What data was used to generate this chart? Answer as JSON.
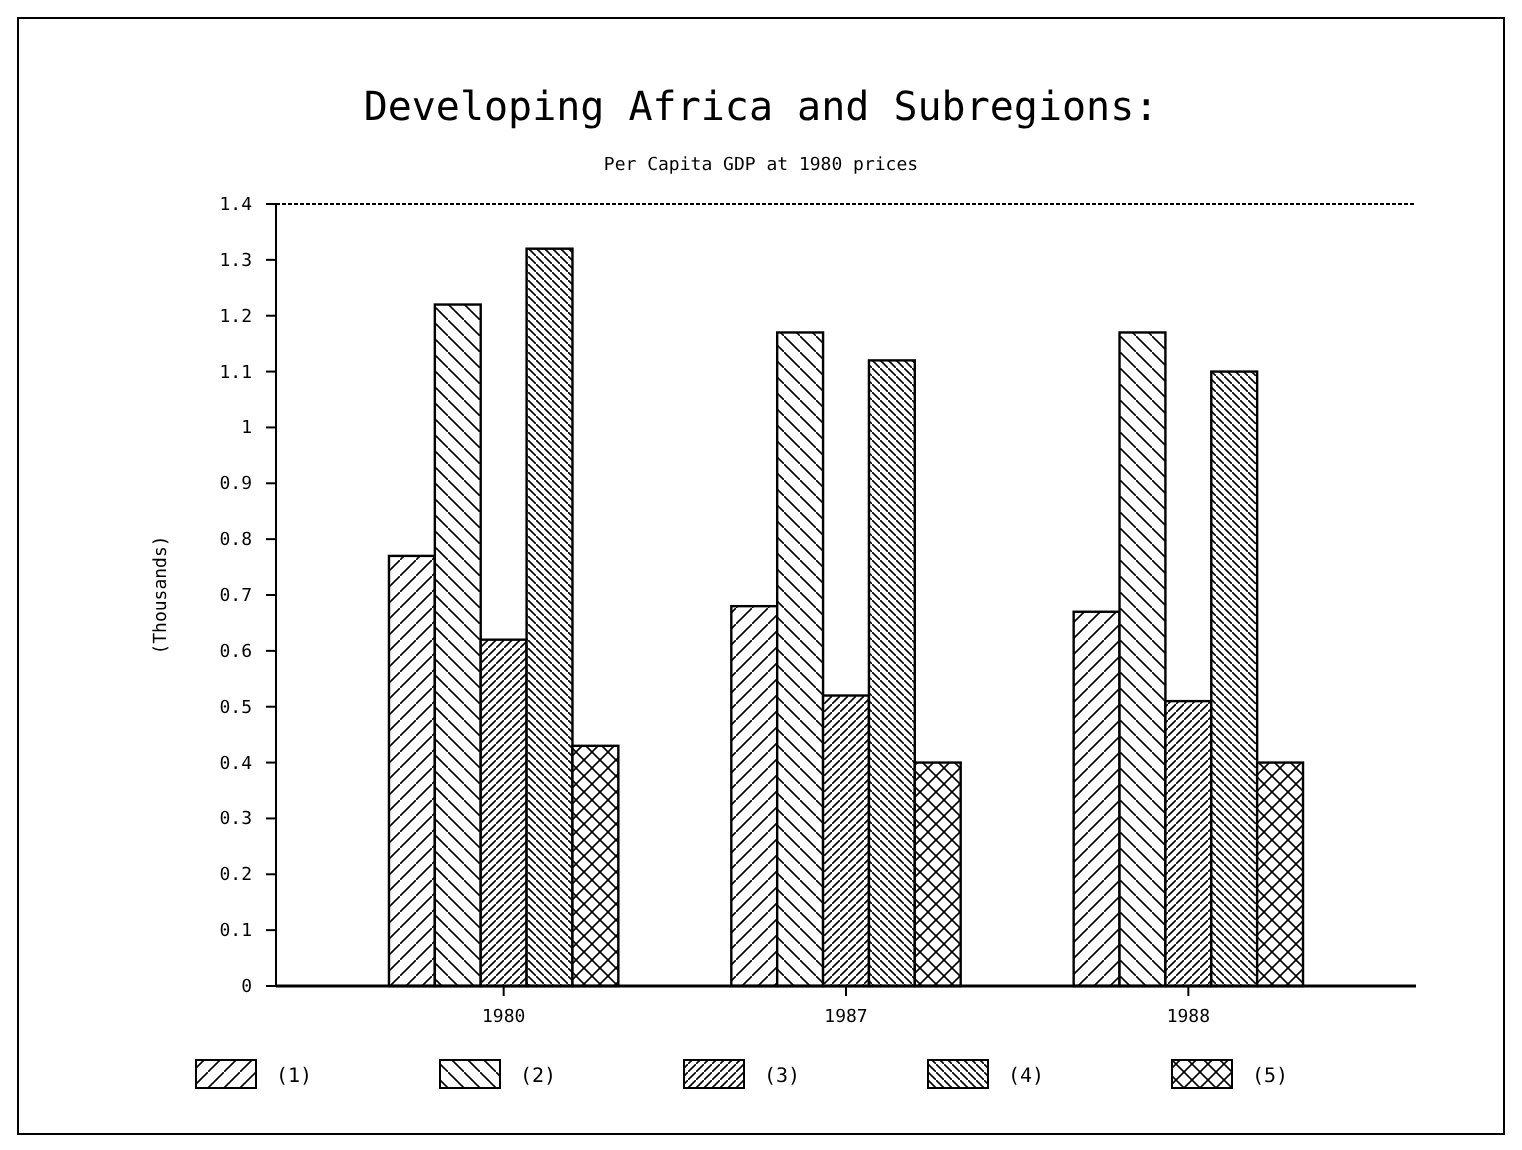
{
  "chart_data": {
    "type": "bar",
    "title": "Developing Africa and Subregions:",
    "subtitle": "Per Capita GDP at 1980 prices",
    "ylabel": "(Thousands)",
    "categories": [
      "1980",
      "1987",
      "1988"
    ],
    "series": [
      {
        "name": "(1)",
        "color": "#000000",
        "values": [
          0.77,
          0.68,
          0.67
        ]
      },
      {
        "name": "(2)",
        "color": "#000000",
        "values": [
          1.22,
          1.17,
          1.17
        ]
      },
      {
        "name": "(3)",
        "color": "#000000",
        "values": [
          0.62,
          0.52,
          0.51
        ]
      },
      {
        "name": "(4)",
        "color": "#000000",
        "values": [
          1.32,
          1.12,
          1.1
        ]
      },
      {
        "name": "(5)",
        "color": "#000000",
        "values": [
          0.43,
          0.4,
          0.4
        ]
      }
    ],
    "ylim": [
      0,
      1.4
    ],
    "yticks": [
      0,
      0.1,
      0.2,
      0.3,
      0.4,
      0.5,
      0.6,
      0.7,
      0.8,
      0.9,
      1,
      1.1,
      1.2,
      1.3,
      1.4
    ],
    "grid": false,
    "legend": "bottom"
  }
}
